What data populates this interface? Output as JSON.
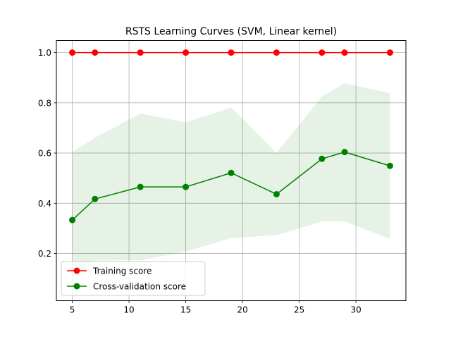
{
  "chart_data": {
    "type": "line",
    "title": "RSTS Learning Curves (SVM, Linear kernel)",
    "xlabel": "",
    "ylabel": "",
    "xlim": [
      3.6,
      34.4
    ],
    "ylim": [
      0.012,
      1.048
    ],
    "xticks": [
      5,
      10,
      15,
      20,
      25,
      30
    ],
    "yticks": [
      0.2,
      0.4,
      0.6,
      0.8,
      1.0
    ],
    "xtick_labels": [
      "5",
      "10",
      "15",
      "20",
      "25",
      "30"
    ],
    "ytick_labels": [
      "0.2",
      "0.4",
      "0.6",
      "0.8",
      "1.0"
    ],
    "grid": true,
    "legend_position": "lower-left",
    "x": [
      5,
      7,
      11,
      15,
      19,
      23,
      27,
      29,
      33
    ],
    "series": [
      {
        "name": "Training score",
        "color": "#ff0000",
        "values": [
          1.0,
          1.0,
          1.0,
          1.0,
          1.0,
          1.0,
          1.0,
          1.0,
          1.0
        ]
      },
      {
        "name": "Cross-validation score",
        "color": "#008000",
        "values": [
          0.333,
          0.417,
          0.465,
          0.465,
          0.521,
          0.436,
          0.577,
          0.604,
          0.549
        ],
        "band_upper": [
          0.604,
          0.661,
          0.757,
          0.722,
          0.781,
          0.601,
          0.825,
          0.878,
          0.838
        ],
        "band_lower": [
          0.062,
          0.172,
          0.173,
          0.207,
          0.261,
          0.273,
          0.327,
          0.328,
          0.258
        ],
        "band_color": "#008000"
      }
    ]
  }
}
